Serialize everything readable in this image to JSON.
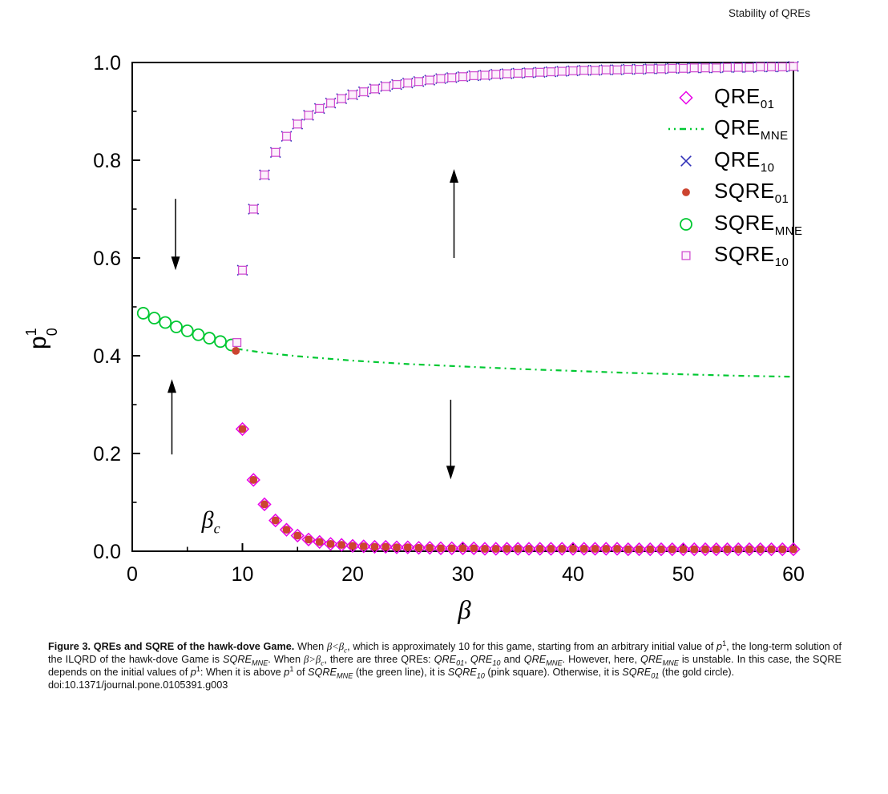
{
  "header": {
    "running_title": "Stability of QREs"
  },
  "legend": {
    "items": [
      {
        "main": "QRE",
        "sub": "01",
        "marker": "diamond-open",
        "color": "#E800E8"
      },
      {
        "main": "QRE",
        "sub": "MNE",
        "marker": "dash-dot-line",
        "color": "#00C832"
      },
      {
        "main": "QRE",
        "sub": "10",
        "marker": "x-cross",
        "color": "#3030B8"
      },
      {
        "main": "SQRE",
        "sub": "01",
        "marker": "circle-filled",
        "color": "#CC4430"
      },
      {
        "main": "SQRE",
        "sub": "MNE",
        "marker": "circle-open",
        "color": "#00C832"
      },
      {
        "main": "SQRE",
        "sub": "10",
        "marker": "square-open",
        "color": "#D050D0"
      }
    ]
  },
  "chart_data": {
    "type": "scatter",
    "title": "",
    "xlabel": "β",
    "ylabel": {
      "base": "p",
      "sup": "1",
      "sub": "0"
    },
    "xlim": [
      0,
      60
    ],
    "ylim": [
      0.0,
      1.0
    ],
    "grid": false,
    "legend_position": "top-right-inside",
    "x_ticks_major": [
      0,
      10,
      20,
      30,
      40,
      50,
      60
    ],
    "x_tick_labels": [
      "0",
      "10",
      "20",
      "30",
      "40",
      "50",
      "60"
    ],
    "x_ticks_minor": [
      5,
      15,
      25,
      35,
      45,
      55
    ],
    "y_ticks_major": [
      0.0,
      0.2,
      0.4,
      0.6,
      0.8,
      1.0
    ],
    "y_tick_labels": [
      "0.0",
      "0.2",
      "0.4",
      "0.6",
      "0.8",
      "1.0"
    ],
    "y_ticks_minor": [
      0.1,
      0.3,
      0.5,
      0.7,
      0.9
    ],
    "branches": {
      "beta": [
        10,
        11,
        12,
        13,
        14,
        15,
        16,
        17,
        18,
        19,
        20,
        21,
        22,
        23,
        24,
        25,
        26,
        27,
        28,
        29,
        30,
        31,
        32,
        33,
        34,
        35,
        36,
        37,
        38,
        39,
        40,
        41,
        42,
        43,
        44,
        45,
        46,
        47,
        48,
        49,
        50,
        51,
        52,
        53,
        54,
        55,
        56,
        57,
        58,
        59,
        60
      ],
      "upper": [
        0.575,
        0.7,
        0.77,
        0.816,
        0.849,
        0.874,
        0.892,
        0.906,
        0.917,
        0.926,
        0.934,
        0.94,
        0.946,
        0.951,
        0.955,
        0.958,
        0.961,
        0.964,
        0.967,
        0.969,
        0.971,
        0.973,
        0.974,
        0.976,
        0.977,
        0.978,
        0.979,
        0.98,
        0.981,
        0.982,
        0.983,
        0.984,
        0.984,
        0.985,
        0.985,
        0.986,
        0.986,
        0.987,
        0.987,
        0.988,
        0.988,
        0.989,
        0.989,
        0.989,
        0.99,
        0.99,
        0.99,
        0.991,
        0.991,
        0.991,
        0.992
      ],
      "lower": [
        0.25,
        0.146,
        0.096,
        0.063,
        0.044,
        0.032,
        0.024,
        0.019,
        0.015,
        0.013,
        0.011,
        0.01,
        0.009,
        0.009,
        0.008,
        0.008,
        0.007,
        0.007,
        0.006,
        0.006,
        0.006,
        0.006,
        0.005,
        0.005,
        0.005,
        0.005,
        0.005,
        0.005,
        0.005,
        0.005,
        0.005,
        0.005,
        0.005,
        0.005,
        0.005,
        0.004,
        0.004,
        0.004,
        0.004,
        0.004,
        0.004,
        0.004,
        0.004,
        0.004,
        0.004,
        0.004,
        0.004,
        0.004,
        0.004,
        0.004,
        0.004
      ]
    },
    "series": [
      {
        "name": "QRE01",
        "marker": "diamond-open",
        "color": "#E800E8",
        "data_ref": "lower"
      },
      {
        "name": "QREMNE",
        "marker": "dash-dot-line",
        "color": "#00C832",
        "line_points": [
          [
            9.5,
            0.414
          ],
          [
            12,
            0.406
          ],
          [
            15,
            0.399
          ],
          [
            20,
            0.39
          ],
          [
            25,
            0.383
          ],
          [
            30,
            0.378
          ],
          [
            35,
            0.373
          ],
          [
            40,
            0.369
          ],
          [
            45,
            0.365
          ],
          [
            50,
            0.362
          ],
          [
            55,
            0.359
          ],
          [
            60,
            0.357
          ]
        ]
      },
      {
        "name": "QRE10",
        "marker": "x-cross",
        "color": "#3030B8",
        "data_ref": "upper"
      },
      {
        "name": "SQRE01",
        "marker": "circle-filled",
        "color": "#CC4430",
        "data_ref": "lower",
        "extra_point": [
          9.4,
          0.41
        ]
      },
      {
        "name": "SQREMNE",
        "marker": "circle-open",
        "color": "#00C832",
        "x": [
          1,
          2,
          3,
          4,
          5,
          6,
          7,
          8,
          9
        ],
        "y": [
          0.487,
          0.477,
          0.468,
          0.459,
          0.451,
          0.443,
          0.436,
          0.429,
          0.422
        ]
      },
      {
        "name": "SQRE10",
        "marker": "square-open",
        "color": "#D050D0",
        "data_ref": "upper",
        "extra_point": [
          9.5,
          0.427
        ]
      }
    ],
    "annotations": {
      "beta_c": {
        "base": "β",
        "sub": "c",
        "x": 6.3,
        "y": 0.048
      },
      "arrows": [
        {
          "x": 3.93,
          "from": 0.721,
          "to": 0.575
        },
        {
          "x": 3.6,
          "from": 0.198,
          "to": 0.352
        },
        {
          "x": 29.2,
          "from": 0.6,
          "to": 0.782
        },
        {
          "x": 28.9,
          "from": 0.31,
          "to": 0.147
        }
      ]
    }
  },
  "caption": {
    "segments": [
      {
        "t": "Figure 3. QREs and SQRE of the hawk-dove Game.",
        "b": 1
      },
      {
        "t": " When "
      },
      {
        "t": "β<β",
        "i": 1,
        "f": "serif"
      },
      {
        "t": "c",
        "i": 1,
        "sub": 1,
        "f": "serif"
      },
      {
        "t": ", which is approximately 10 for this game, starting from an arbitrary initial value of "
      },
      {
        "t": "p",
        "i": 1
      },
      {
        "t": "1",
        "sup": 1
      },
      {
        "t": ", the long-term solution of the ILQRD of the hawk-dove Game is "
      },
      {
        "t": "SQRE",
        "i": 1
      },
      {
        "t": "MNE",
        "i": 1,
        "sub": 1
      },
      {
        "t": ". When "
      },
      {
        "t": "β>β",
        "i": 1,
        "f": "serif"
      },
      {
        "t": "c",
        "i": 1,
        "sub": 1,
        "f": "serif"
      },
      {
        "t": ", there are three QREs: "
      },
      {
        "t": "QRE",
        "i": 1
      },
      {
        "t": "01",
        "i": 1,
        "sub": 1
      },
      {
        "t": ", "
      },
      {
        "t": "QRE",
        "i": 1
      },
      {
        "t": "10",
        "i": 1,
        "sub": 1
      },
      {
        "t": " and "
      },
      {
        "t": "QRE",
        "i": 1
      },
      {
        "t": "MNE",
        "i": 1,
        "sub": 1
      },
      {
        "t": ". However, here, "
      },
      {
        "t": "QRE",
        "i": 1
      },
      {
        "t": "MNE",
        "i": 1,
        "sub": 1
      },
      {
        "t": " is unstable. In this case, the SQRE depends on the initial values of "
      },
      {
        "t": "p",
        "i": 1
      },
      {
        "t": "1",
        "sup": 1
      },
      {
        "t": ": When it is above "
      },
      {
        "t": "p",
        "i": 1
      },
      {
        "t": "1",
        "sup": 1
      },
      {
        "t": " of "
      },
      {
        "t": "SQRE",
        "i": 1
      },
      {
        "t": "MNE",
        "i": 1,
        "sub": 1
      },
      {
        "t": " (the green line), it is "
      },
      {
        "t": "SQRE",
        "i": 1
      },
      {
        "t": "10",
        "i": 1,
        "sub": 1
      },
      {
        "t": " (pink square). Otherwise, it is "
      },
      {
        "t": "SQRE",
        "i": 1
      },
      {
        "t": "01",
        "i": 1,
        "sub": 1
      },
      {
        "t": " (the gold circle)."
      }
    ],
    "doi": "doi:10.1371/journal.pone.0105391.g003"
  }
}
